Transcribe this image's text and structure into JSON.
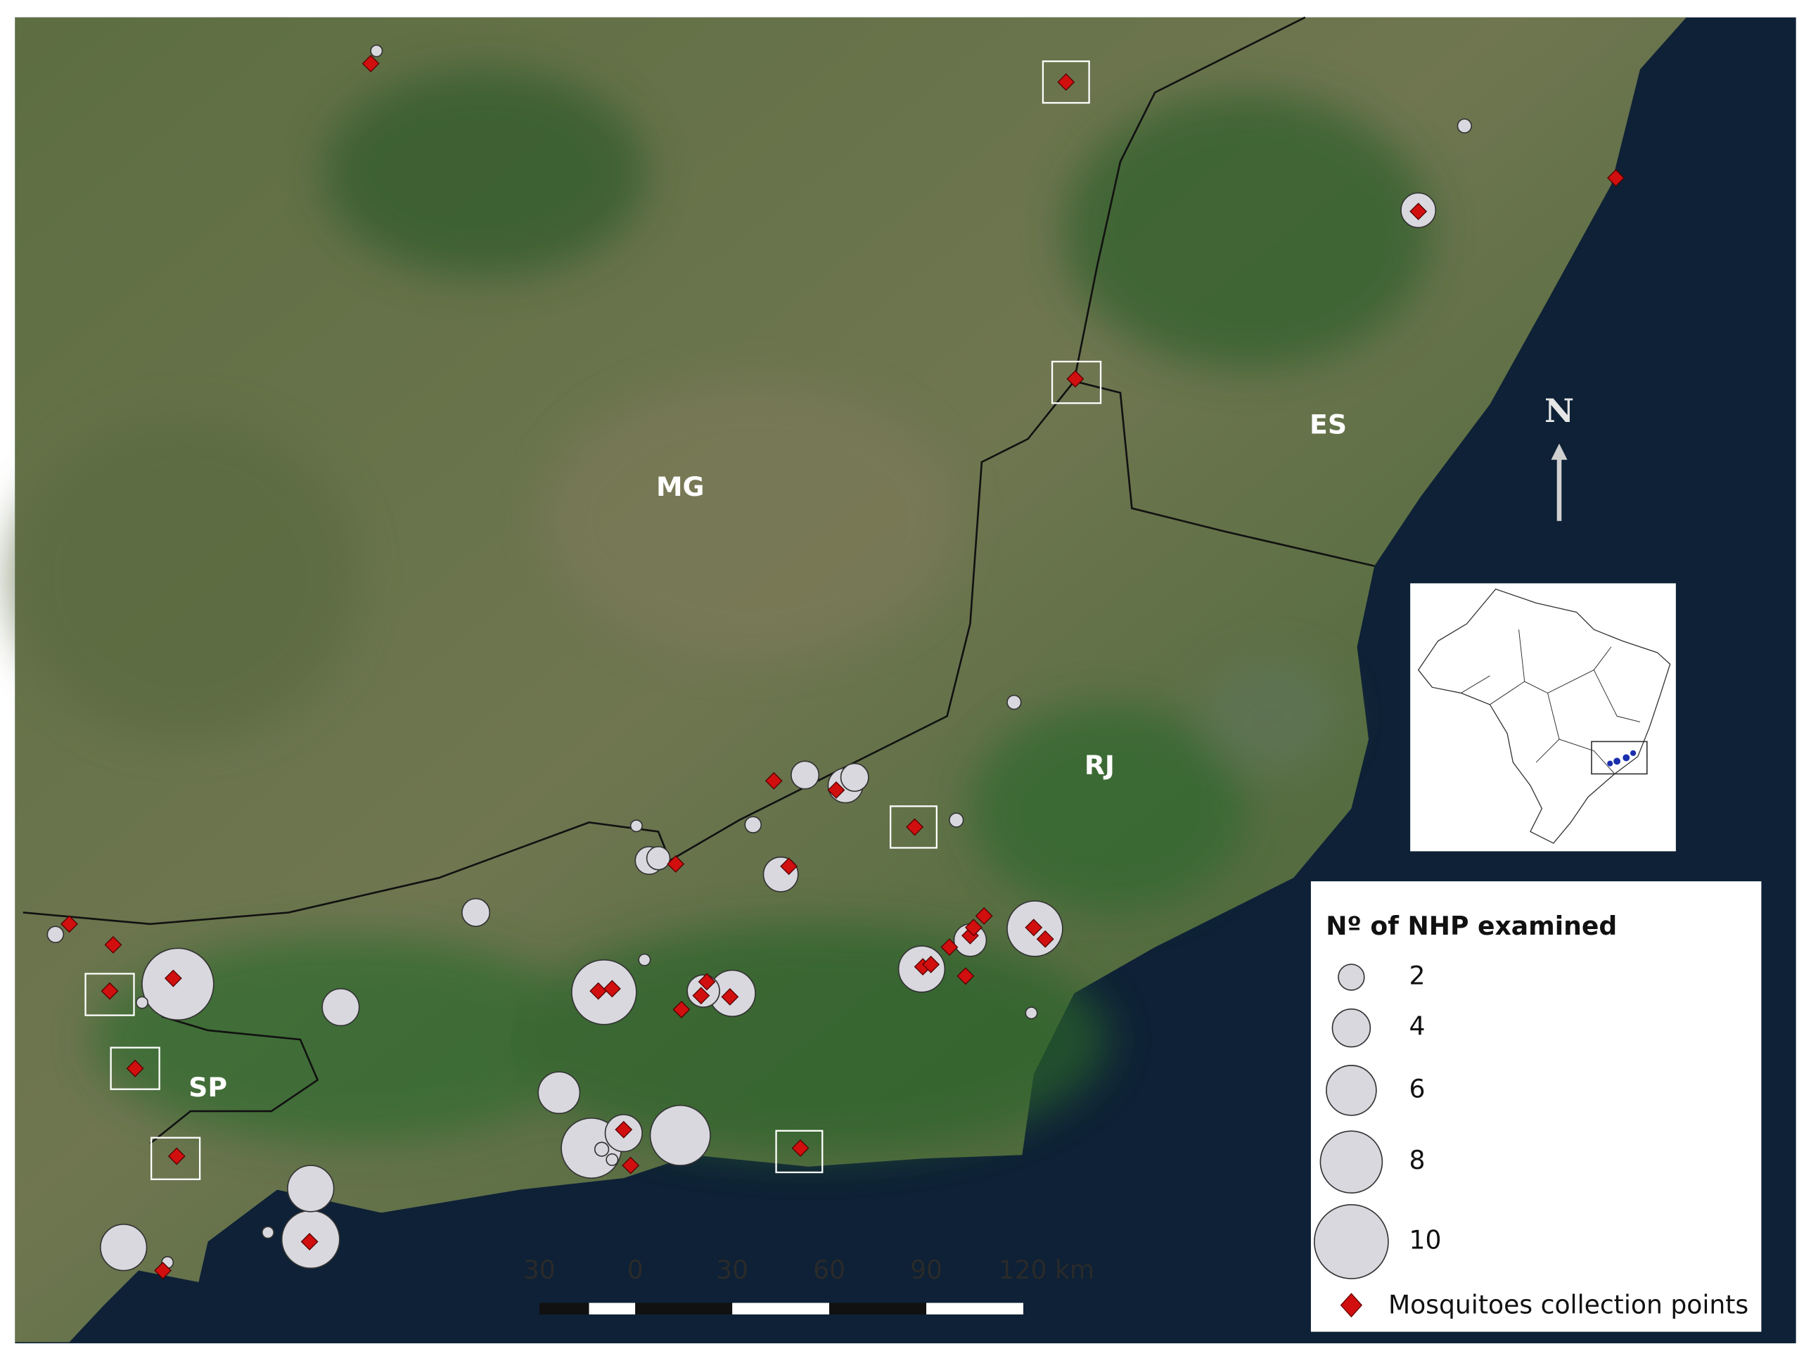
{
  "map": {
    "state_labels": [
      "MG",
      "ES",
      "RJ",
      "SP"
    ],
    "north_label": "N",
    "legend": {
      "title": "Nº of NHP examined",
      "sizes": [
        2,
        4,
        6,
        8,
        10
      ],
      "collection_label": "Mosquitoes collection points"
    },
    "scale_bar": {
      "labels": [
        "30",
        "0",
        "30",
        "60",
        "90",
        "120 km"
      ]
    }
  }
}
